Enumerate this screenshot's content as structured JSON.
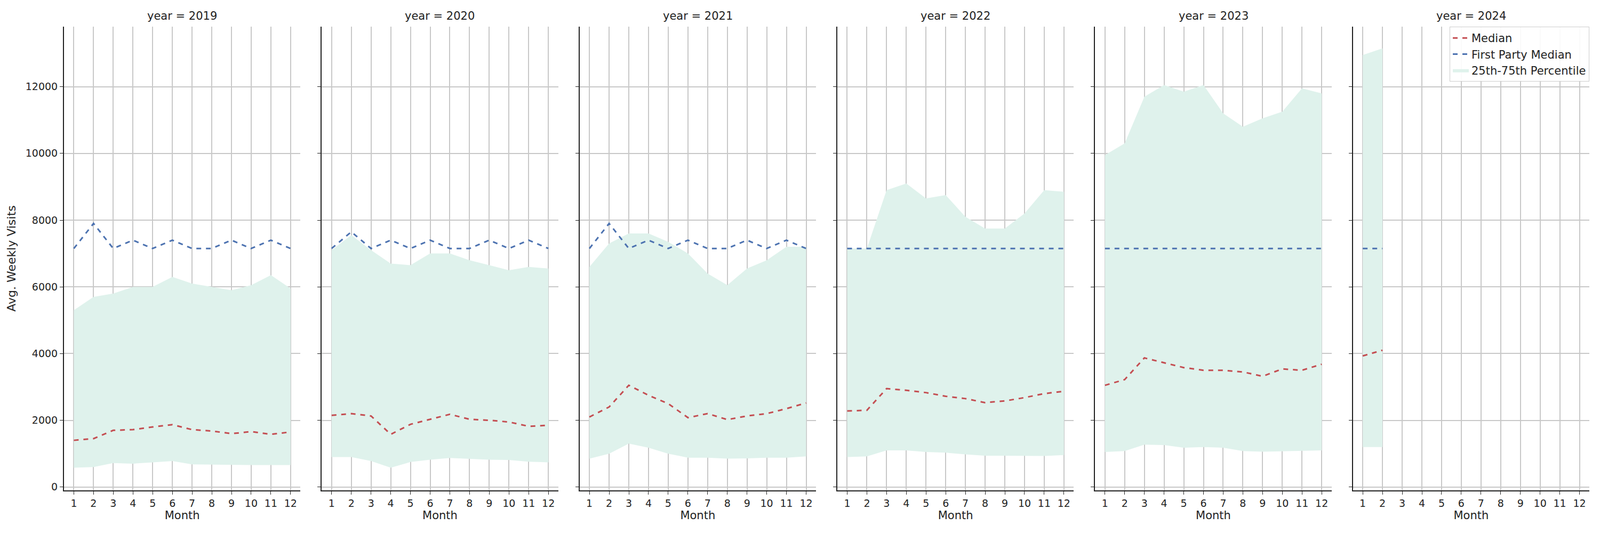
{
  "chart_data": {
    "type": "line",
    "xlabel": "Month",
    "ylabel": "Avg. Weekly Visits",
    "xlim": [
      0.5,
      12.5
    ],
    "xticks": [
      1,
      2,
      3,
      4,
      5,
      6,
      7,
      8,
      9,
      10,
      11,
      12
    ],
    "ylim": [
      -100,
      13800
    ],
    "yticks": [
      0,
      2000,
      4000,
      6000,
      8000,
      10000,
      12000
    ],
    "grid": true,
    "legend": "upper right",
    "series_styles": [
      {
        "name": "Median",
        "color": "#c44e52",
        "line_style": "dashed"
      },
      {
        "name": "First Party Median",
        "color": "#4c72b0",
        "line_style": "dashed"
      },
      {
        "name": "25th-75th Percentile",
        "color": "#dff2ec",
        "type": "band"
      }
    ],
    "facets": [
      {
        "title": "year = 2019",
        "x": [
          1,
          2,
          3,
          4,
          5,
          6,
          7,
          8,
          9,
          10,
          11,
          12
        ],
        "median": [
          1400,
          1450,
          1700,
          1720,
          1800,
          1870,
          1720,
          1680,
          1600,
          1660,
          1580,
          1650
        ],
        "first_party_median": [
          7150,
          7900,
          7150,
          7400,
          7150,
          7400,
          7150,
          7150,
          7400,
          7150,
          7400,
          7150
        ],
        "p25": [
          580,
          600,
          720,
          700,
          740,
          780,
          680,
          670,
          660,
          660,
          660,
          660
        ],
        "p75": [
          5300,
          5700,
          5800,
          6000,
          6000,
          6300,
          6100,
          6000,
          5900,
          6050,
          6350,
          5950
        ]
      },
      {
        "title": "year = 2020",
        "x": [
          1,
          2,
          3,
          4,
          5,
          6,
          7,
          8,
          9,
          10,
          11,
          12
        ],
        "median": [
          2150,
          2200,
          2130,
          1580,
          1880,
          2030,
          2180,
          2030,
          2000,
          1950,
          1820,
          1850
        ],
        "first_party_median": [
          7150,
          7650,
          7150,
          7400,
          7150,
          7400,
          7150,
          7150,
          7400,
          7150,
          7400,
          7150
        ],
        "p25": [
          900,
          900,
          780,
          580,
          750,
          820,
          870,
          840,
          820,
          810,
          760,
          740
        ],
        "p75": [
          7100,
          7550,
          7100,
          6700,
          6650,
          7000,
          7000,
          6800,
          6650,
          6500,
          6600,
          6550
        ]
      },
      {
        "title": "year = 2021",
        "x": [
          1,
          2,
          3,
          4,
          5,
          6,
          7,
          8,
          9,
          10,
          11,
          12
        ],
        "median": [
          2100,
          2400,
          3050,
          2750,
          2500,
          2080,
          2200,
          2020,
          2130,
          2200,
          2350,
          2520
        ],
        "first_party_median": [
          7150,
          7900,
          7150,
          7400,
          7150,
          7400,
          7150,
          7150,
          7400,
          7150,
          7400,
          7150
        ],
        "p25": [
          850,
          1000,
          1300,
          1180,
          1000,
          880,
          880,
          850,
          860,
          880,
          880,
          920
        ],
        "p75": [
          6600,
          7300,
          7600,
          7600,
          7350,
          7000,
          6400,
          6050,
          6550,
          6800,
          7200,
          7200
        ]
      },
      {
        "title": "year = 2022",
        "x": [
          1,
          2,
          3,
          4,
          5,
          6,
          7,
          8,
          9,
          10,
          11,
          12
        ],
        "median": [
          2280,
          2300,
          2950,
          2900,
          2830,
          2720,
          2650,
          2530,
          2580,
          2680,
          2800,
          2870
        ],
        "first_party_median": [
          7150,
          7150,
          7150,
          7150,
          7150,
          7150,
          7150,
          7150,
          7150,
          7150,
          7150,
          7150
        ],
        "p25": [
          900,
          920,
          1100,
          1100,
          1050,
          1030,
          980,
          940,
          940,
          940,
          930,
          960
        ],
        "p75": [
          7150,
          7150,
          8900,
          9100,
          8650,
          8750,
          8100,
          7750,
          7750,
          8200,
          8900,
          8850
        ]
      },
      {
        "title": "year = 2023",
        "x": [
          1,
          2,
          3,
          4,
          5,
          6,
          7,
          8,
          9,
          10,
          11,
          12
        ],
        "median": [
          3050,
          3220,
          3870,
          3720,
          3580,
          3500,
          3500,
          3450,
          3320,
          3540,
          3500,
          3680
        ],
        "first_party_median": [
          7150,
          7150,
          7150,
          7150,
          7150,
          7150,
          7150,
          7150,
          7150,
          7150,
          7150,
          7150
        ],
        "p25": [
          1050,
          1080,
          1270,
          1260,
          1180,
          1200,
          1180,
          1080,
          1060,
          1070,
          1080,
          1100
        ],
        "p75": [
          9950,
          10300,
          11700,
          12050,
          11850,
          12050,
          11200,
          10800,
          11050,
          11250,
          11950,
          11800
        ]
      },
      {
        "title": "year = 2024",
        "x": [
          1,
          2
        ],
        "median": [
          3930,
          4100
        ],
        "first_party_median": [
          7150,
          7150
        ],
        "p25": [
          1200,
          1200
        ],
        "p75": [
          12950,
          13150
        ]
      }
    ]
  }
}
